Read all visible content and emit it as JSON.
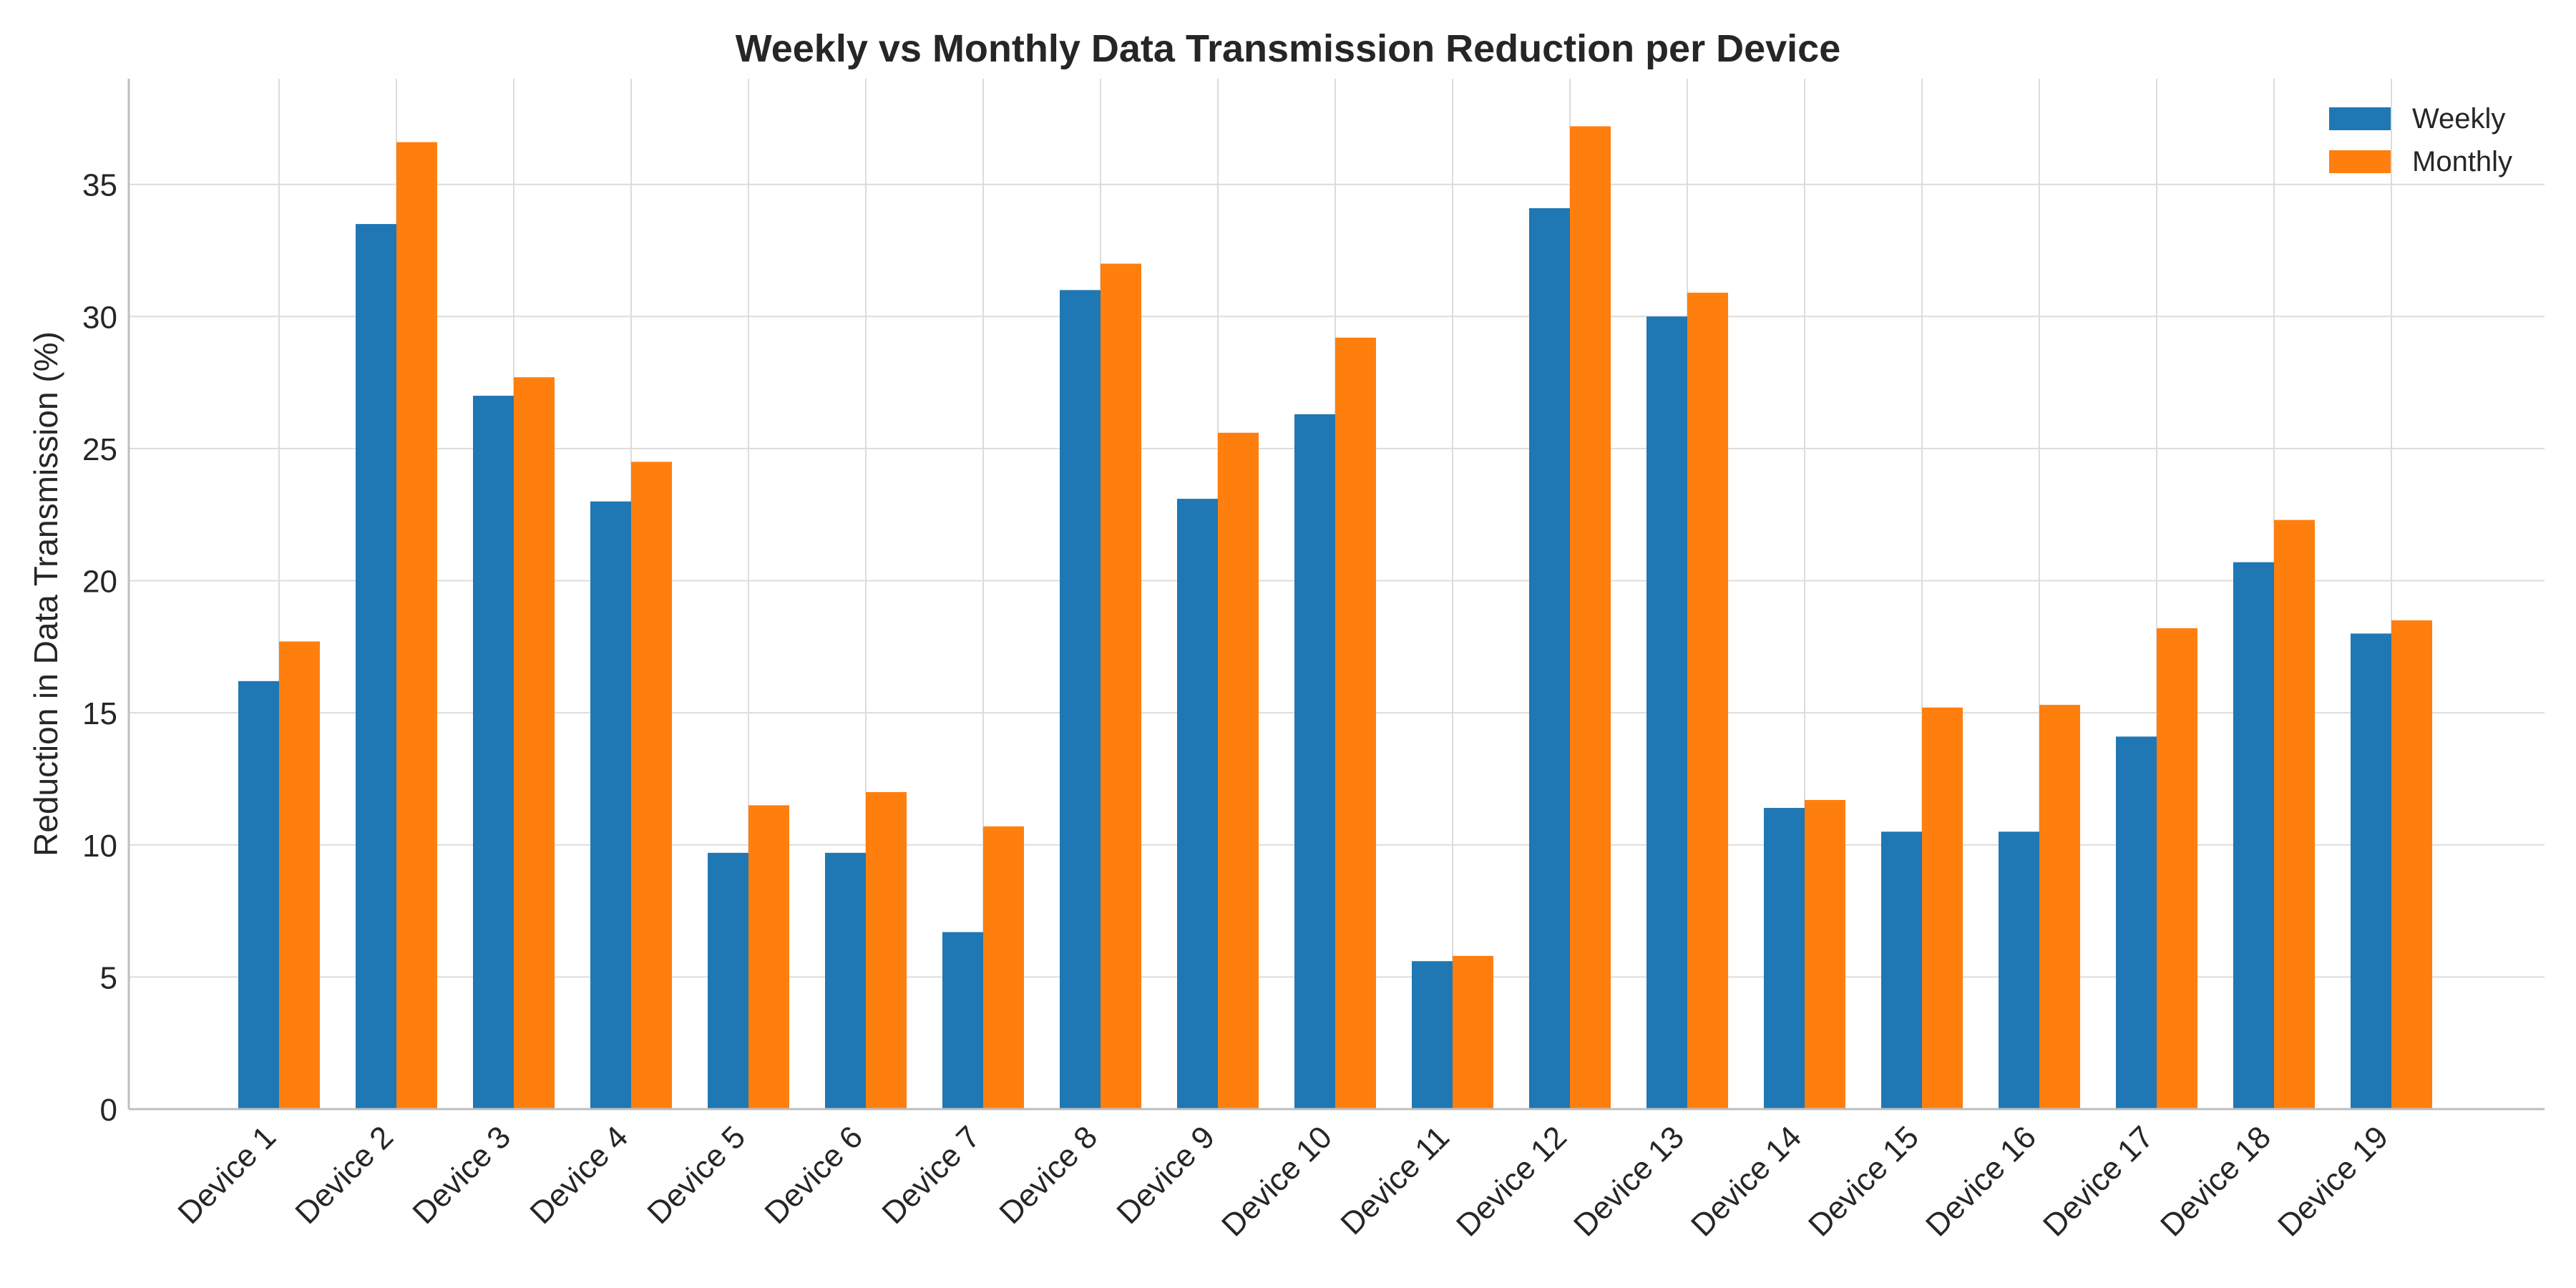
{
  "chart_data": {
    "type": "bar",
    "title": "Weekly vs Monthly Data Transmission Reduction per Device",
    "xlabel": "",
    "ylabel": "Reduction in Data Transmission (%)",
    "categories": [
      "Device 1",
      "Device 2",
      "Device 3",
      "Device 4",
      "Device 5",
      "Device 6",
      "Device 7",
      "Device 8",
      "Device 9",
      "Device 10",
      "Device 11",
      "Device 12",
      "Device 13",
      "Device 14",
      "Device 15",
      "Device 16",
      "Device 17",
      "Device 18",
      "Device 19"
    ],
    "series": [
      {
        "name": "Weekly",
        "color": "#1f77b4",
        "values": [
          16.2,
          33.5,
          27.0,
          23.0,
          9.7,
          9.7,
          6.7,
          31.0,
          23.1,
          26.3,
          5.6,
          34.1,
          30.0,
          11.4,
          10.5,
          10.5,
          14.1,
          20.7,
          18.0
        ]
      },
      {
        "name": "Monthly",
        "color": "#ff7f0e",
        "values": [
          17.7,
          36.6,
          27.7,
          24.5,
          11.5,
          12.0,
          10.7,
          32.0,
          25.6,
          29.2,
          5.8,
          37.2,
          30.9,
          11.7,
          15.2,
          15.3,
          18.2,
          22.3,
          18.5
        ]
      }
    ],
    "ylim": [
      0,
      39
    ],
    "yticks": [
      "0",
      "5",
      "10",
      "15",
      "20",
      "25",
      "30",
      "35"
    ],
    "grid": true,
    "legend_position": "top-right"
  }
}
